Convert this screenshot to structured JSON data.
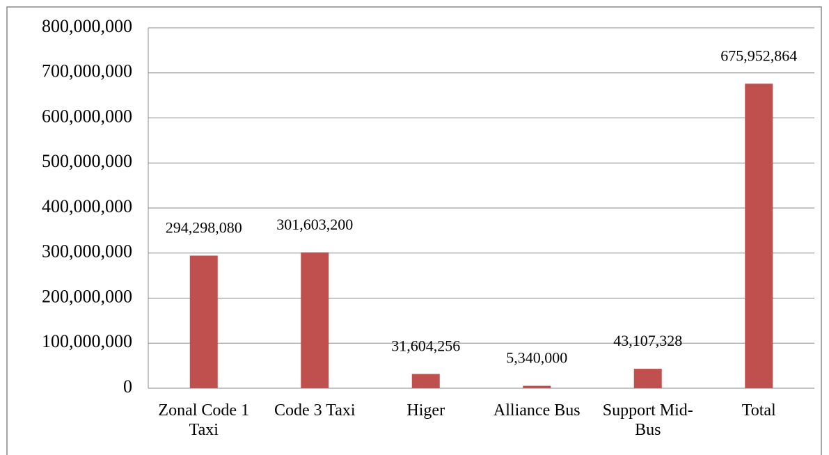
{
  "chart_data": {
    "type": "bar",
    "categories": [
      "Zonal Code 1 Taxi",
      "Code 3 Taxi",
      "Higer",
      "Alliance Bus",
      "Support Mid-Bus",
      "Total"
    ],
    "values": [
      294298080,
      301603200,
      31604256,
      5340000,
      43107328,
      675952864
    ],
    "value_labels": [
      "294,298,080",
      "301,603,200",
      "31,604,256",
      "5,340,000",
      "43,107,328",
      "675,952,864"
    ],
    "color": "#c0504d",
    "ylim": [
      0,
      800000000
    ],
    "yticks": [
      0,
      {
        "value": 100000000,
        "label": "100,000,000"
      },
      {
        "value": 200000000,
        "label": "200,000,000"
      },
      {
        "value": 300000000,
        "label": "300,000,000"
      },
      {
        "value": 400000000,
        "label": "400,000,000"
      },
      {
        "value": 500000000,
        "label": "500,000,000"
      },
      {
        "value": 600000000,
        "label": "600,000,000"
      },
      {
        "value": 700000000,
        "label": "700,000,000"
      },
      {
        "value": 800000000,
        "label": "800,000,000"
      }
    ],
    "grid": true
  }
}
